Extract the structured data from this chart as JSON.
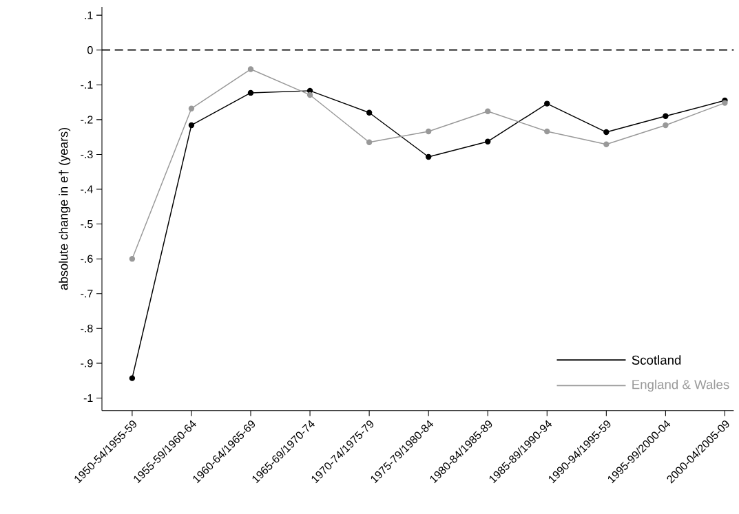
{
  "chart_data": {
    "type": "line",
    "ylabel": "absolute change in e† (years)",
    "categories": [
      "1950-54/1955-59",
      "1955-59/1960-64",
      "1960-64/1965-69",
      "1965-69/1970-74",
      "1970-74/1975-79",
      "1975-79/1980-84",
      "1980-84/1985-89",
      "1985-89/1990-94",
      "1990-94/1995-59",
      "1995-99/2000-04",
      "2000-04/2005-09"
    ],
    "series": [
      {
        "name": "Scotland",
        "color": "#000000",
        "values": [
          -0.943,
          -0.216,
          -0.123,
          -0.117,
          -0.18,
          -0.307,
          -0.263,
          -0.154,
          -0.236,
          -0.19,
          -0.145
        ]
      },
      {
        "name": "England & Wales",
        "color": "#999999",
        "values": [
          -0.6,
          -0.168,
          -0.055,
          -0.129,
          -0.265,
          -0.234,
          -0.176,
          -0.234,
          -0.271,
          -0.216,
          -0.152
        ]
      }
    ],
    "ylim": [
      -1.036,
      0.124
    ],
    "yticks": [
      {
        "value": 0.1,
        "label": ".1"
      },
      {
        "value": 0,
        "label": "0"
      },
      {
        "value": -0.1,
        "label": "-.1"
      },
      {
        "value": -0.2,
        "label": "-.2"
      },
      {
        "value": -0.3,
        "label": "-.3"
      },
      {
        "value": -0.4,
        "label": "-.4"
      },
      {
        "value": -0.5,
        "label": "-.5"
      },
      {
        "value": -0.6,
        "label": "-.6"
      },
      {
        "value": -0.7,
        "label": "-.7"
      },
      {
        "value": -0.8,
        "label": "-.8"
      },
      {
        "value": -0.9,
        "label": "-.9"
      },
      {
        "value": -1,
        "label": "-1"
      }
    ],
    "ref_lines": [
      {
        "axis": "y",
        "value": 0,
        "color": "#000000",
        "line_style": "dashed"
      }
    ],
    "legend": "bottom right",
    "marker": "circle",
    "line_style": "solid",
    "grid": false
  }
}
